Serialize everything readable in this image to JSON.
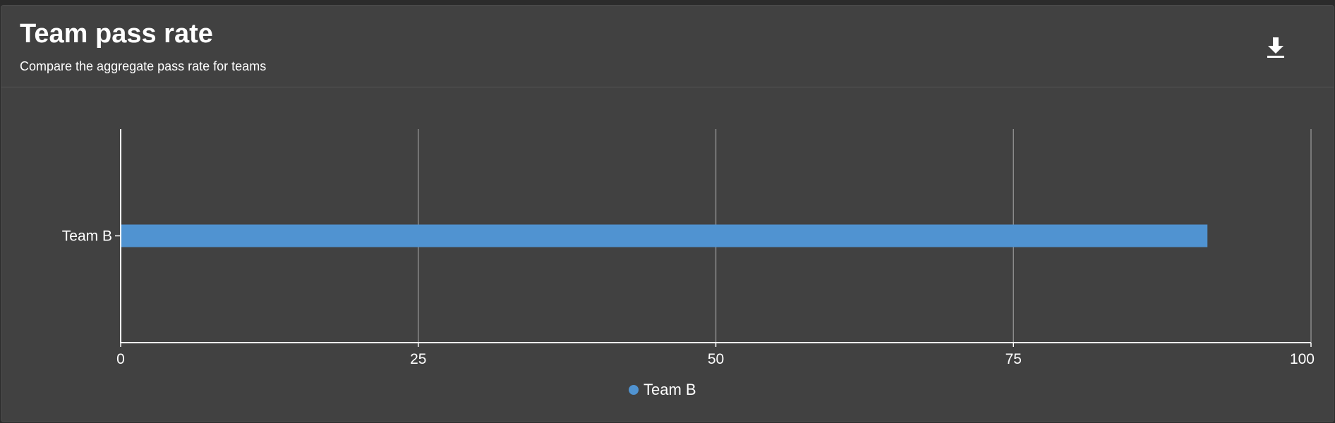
{
  "header": {
    "title": "Team pass rate",
    "subtitle": "Compare the aggregate pass rate for teams",
    "download_icon": "download-icon"
  },
  "colors": {
    "background": "#414141",
    "bar": "#5093d1",
    "grid": "#8a8a8a",
    "axis": "#ffffff",
    "text": "#ffffff"
  },
  "chart_data": {
    "type": "bar",
    "orientation": "horizontal",
    "categories": [
      "Team B"
    ],
    "series": [
      {
        "name": "Team B",
        "values": [
          91.3
        ]
      }
    ],
    "xlim": [
      0,
      100
    ],
    "xticks": [
      0,
      25,
      50,
      75,
      100
    ],
    "xlabel": "",
    "ylabel": "",
    "grid": true,
    "legend": "bottom-center"
  }
}
